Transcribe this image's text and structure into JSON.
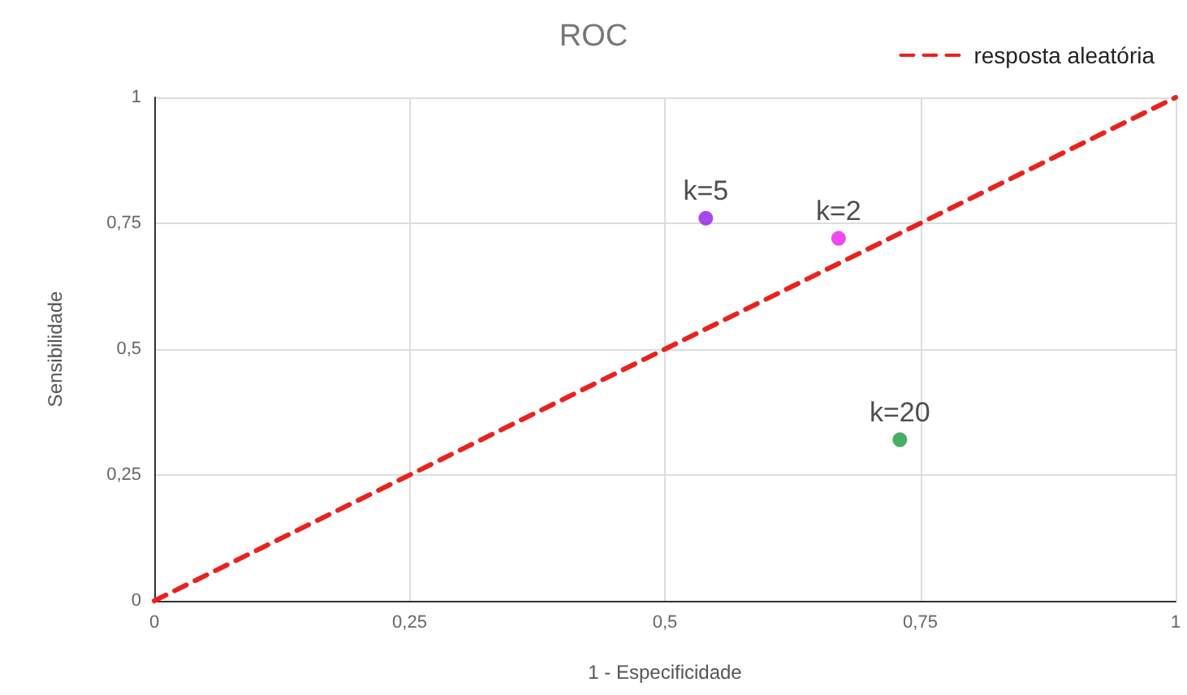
{
  "chart_data": {
    "type": "scatter",
    "title": "ROC",
    "xlabel": "1 - Especificidade",
    "ylabel": "Sensibilidade",
    "xlim": [
      0,
      1
    ],
    "ylim": [
      0,
      1
    ],
    "xticks": [
      {
        "value": 0,
        "label": "0"
      },
      {
        "value": 0.25,
        "label": "0,25"
      },
      {
        "value": 0.5,
        "label": "0,5"
      },
      {
        "value": 0.75,
        "label": "0,75"
      },
      {
        "value": 1,
        "label": "1"
      }
    ],
    "yticks": [
      {
        "value": 0,
        "label": "0"
      },
      {
        "value": 0.25,
        "label": "0,25"
      },
      {
        "value": 0.5,
        "label": "0,5"
      },
      {
        "value": 0.75,
        "label": "0,75"
      },
      {
        "value": 1,
        "label": "1"
      }
    ],
    "grid": true,
    "legend": "top right",
    "marker": "circle",
    "series": [
      {
        "name": "resposta aleatória",
        "type": "line",
        "line_style": "dashed",
        "marker": "none",
        "color": "#e8231f",
        "x": [
          0,
          1
        ],
        "values": [
          0,
          1
        ]
      },
      {
        "name": "k=2",
        "color": "#ea1de8",
        "x": [
          0.67
        ],
        "values": [
          0.72
        ]
      },
      {
        "name": "k=5",
        "color": "#8f1de8",
        "x": [
          0.54
        ],
        "values": [
          0.76
        ]
      },
      {
        "name": "k=20",
        "color": "#1a9a3c",
        "x": [
          0.73
        ],
        "values": [
          0.32
        ]
      }
    ]
  }
}
